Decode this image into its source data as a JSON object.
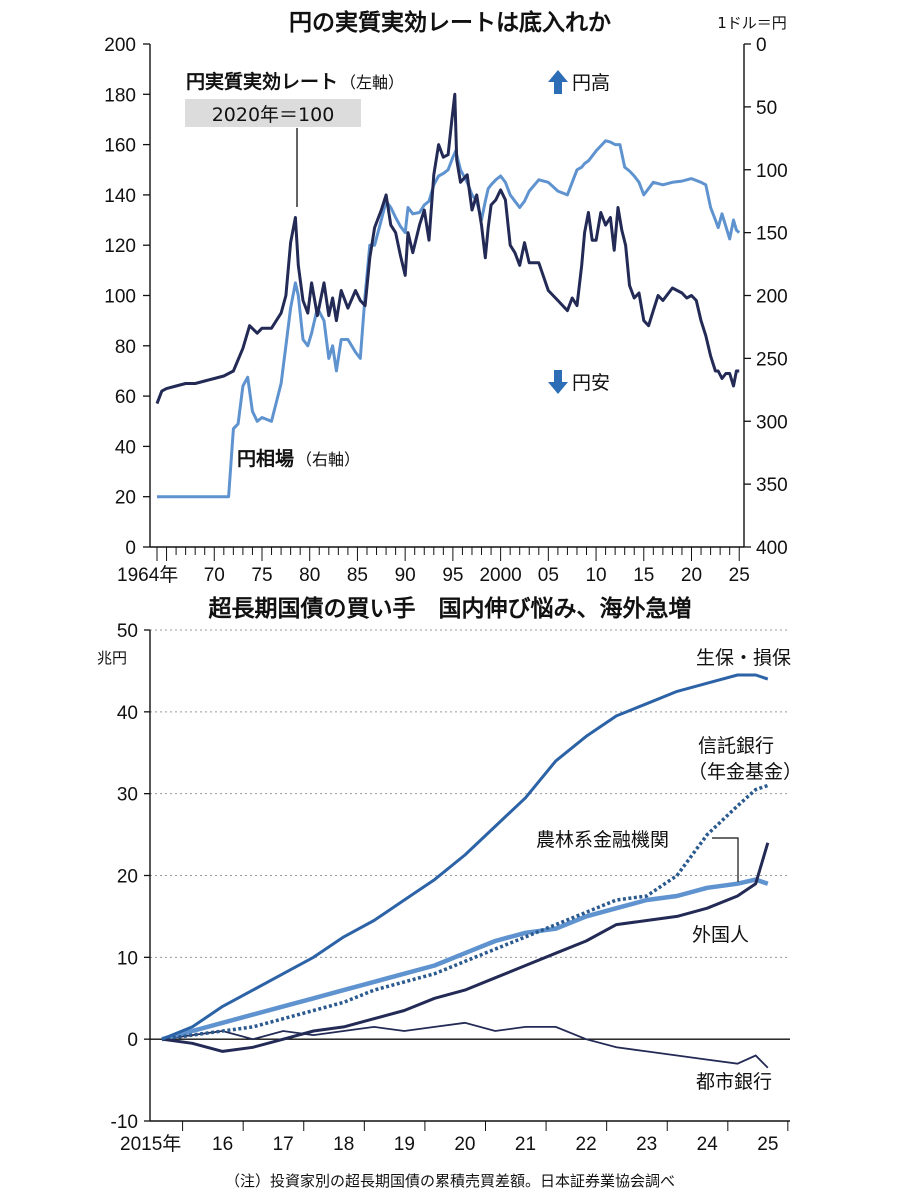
{
  "colors": {
    "dark_navy": "#222a55",
    "light_blue": "#5f93cf",
    "mid_blue": "#2c62a6",
    "grid": "#999999",
    "arrow_blue": "#2d6db5"
  },
  "chart_data": [
    {
      "type": "line",
      "title": "円の実質実効レートは底入れか",
      "left_axis": {
        "ylim": [
          0,
          200
        ],
        "ticks": [
          "0",
          "20",
          "40",
          "60",
          "80",
          "100",
          "120",
          "140",
          "160",
          "180",
          "200"
        ]
      },
      "right_axis": {
        "unit": "1ドル＝円",
        "ylim": [
          400,
          0
        ],
        "inverted": true,
        "ticks": [
          "400",
          "350",
          "300",
          "250",
          "200",
          "150",
          "100",
          "50",
          "0"
        ]
      },
      "x_range": [
        1964,
        2025.5
      ],
      "x_ticks": [
        {
          "x": 1964,
          "label": "1964年"
        },
        {
          "x": 1970,
          "label": "70"
        },
        {
          "x": 1975,
          "label": "75"
        },
        {
          "x": 1980,
          "label": "80"
        },
        {
          "x": 1985,
          "label": "85"
        },
        {
          "x": 1990,
          "label": "90"
        },
        {
          "x": 1995,
          "label": "95"
        },
        {
          "x": 2000,
          "label": "2000"
        },
        {
          "x": 2005,
          "label": "05"
        },
        {
          "x": 2010,
          "label": "10"
        },
        {
          "x": 2015,
          "label": "15"
        },
        {
          "x": 2020,
          "label": "20"
        },
        {
          "x": 2025,
          "label": "25"
        }
      ],
      "annotations": {
        "reer_label": "円実質実効レート",
        "reer_axis": "（左軸）",
        "base_year_box": "2020年＝100",
        "fx_label": "円相場",
        "fx_axis": "（右軸）",
        "yen_strong": "円高",
        "yen_weak": "円安"
      },
      "series": [
        {
          "name": "円実質実効レート",
          "axis": "left",
          "x": [
            1964,
            1964.5,
            1965,
            1966,
            1967,
            1968,
            1969,
            1970,
            1971,
            1972,
            1973,
            1973.7,
            1974.5,
            1975,
            1976,
            1977,
            1977.5,
            1978,
            1978.5,
            1978.8,
            1979.3,
            1979.8,
            1980.2,
            1980.8,
            1981.5,
            1982,
            1982.4,
            1982.8,
            1983.3,
            1984,
            1984.8,
            1985.3,
            1985.8,
            1986.3,
            1986.8,
            1987.5,
            1988,
            1988.5,
            1989,
            1989.5,
            1990,
            1990.3,
            1990.8,
            1991.5,
            1992,
            1992.5,
            1993,
            1993.5,
            1994,
            1994.5,
            1994.9,
            1995.2,
            1995.4,
            1995.8,
            1996.5,
            1997,
            1997.5,
            1998,
            1998.4,
            1998.7,
            1999,
            1999.5,
            2000,
            2000.5,
            2001,
            2001.5,
            2002,
            2002.5,
            2003,
            2004,
            2005,
            2006,
            2007,
            2007.5,
            2008,
            2008.5,
            2008.8,
            2009.2,
            2009.6,
            2010,
            2010.5,
            2011,
            2011.5,
            2011.9,
            2012.3,
            2012.7,
            2013.1,
            2013.5,
            2014,
            2014.5,
            2015,
            2015.5,
            2016,
            2016.5,
            2017,
            2018,
            2019,
            2019.5,
            2020,
            2020.5,
            2021,
            2021.5,
            2022,
            2022.5,
            2022.8,
            2023.2,
            2023.6,
            2024,
            2024.4,
            2024.7,
            2025
          ],
          "values": [
            57,
            62,
            63,
            64,
            65,
            65,
            66,
            67,
            68,
            70,
            79,
            88,
            85,
            87,
            87,
            93,
            100,
            121,
            131,
            112,
            98,
            93,
            105,
            92,
            105,
            92,
            99,
            90,
            102,
            95,
            102,
            98,
            96,
            115,
            127,
            134,
            140,
            128,
            125,
            116,
            108,
            125,
            117,
            128,
            134,
            122,
            148,
            160,
            155,
            156,
            170,
            180,
            154,
            145,
            148,
            134,
            140,
            128,
            115,
            127,
            136,
            138,
            142,
            138,
            120,
            117,
            112,
            121,
            113,
            113,
            102,
            98,
            94,
            99,
            96,
            112,
            125,
            133,
            122,
            122,
            133,
            128,
            131,
            118,
            135,
            126,
            120,
            104,
            99,
            101,
            90,
            88,
            94,
            100,
            98,
            103,
            101,
            99,
            100,
            98,
            90,
            84,
            76,
            70,
            70,
            67,
            69,
            69,
            64,
            70,
            70
          ],
          "color": "dark_navy"
        },
        {
          "name": "円相場",
          "axis": "right",
          "x": [
            1964,
            1971.5,
            1972,
            1972.5,
            1973,
            1973.5,
            1974,
            1974.5,
            1975,
            1976,
            1977,
            1977.5,
            1978,
            1978.5,
            1978.8,
            1979.3,
            1979.8,
            1980.2,
            1980.8,
            1981.5,
            1982,
            1982.4,
            1982.8,
            1983.3,
            1984,
            1984.8,
            1985.3,
            1985.8,
            1986.3,
            1986.8,
            1987.5,
            1988,
            1988.5,
            1989,
            1989.5,
            1990,
            1990.3,
            1990.8,
            1991.5,
            1992,
            1992.5,
            1993,
            1993.5,
            1994,
            1994.5,
            1995,
            1995.3,
            1995.8,
            1996.5,
            1997,
            1997.5,
            1998,
            1998.4,
            1998.7,
            1999,
            1999.5,
            2000,
            2000.5,
            2001,
            2001.5,
            2002,
            2002.5,
            2003,
            2004,
            2005,
            2006,
            2007,
            2007.5,
            2008,
            2008.5,
            2008.8,
            2009.2,
            2010,
            2011,
            2011.5,
            2012,
            2012.5,
            2013,
            2013.5,
            2014,
            2014.5,
            2015,
            2016,
            2017,
            2018,
            2019,
            2020,
            2021,
            2021.5,
            2022,
            2022.5,
            2022.8,
            2023.2,
            2024,
            2024.4,
            2024.7,
            2025
          ],
          "values": [
            360,
            360,
            306,
            302,
            272,
            265,
            292,
            300,
            297,
            300,
            270,
            240,
            210,
            190,
            200,
            235,
            240,
            230,
            210,
            220,
            250,
            240,
            260,
            235,
            235,
            245,
            250,
            200,
            160,
            160,
            140,
            125,
            130,
            138,
            145,
            150,
            130,
            135,
            134,
            128,
            125,
            112,
            105,
            103,
            100,
            90,
            85,
            100,
            110,
            120,
            125,
            140,
            125,
            115,
            112,
            108,
            105,
            110,
            120,
            125,
            130,
            125,
            117,
            108,
            110,
            117,
            120,
            110,
            100,
            98,
            95,
            93,
            85,
            77,
            78,
            80,
            80,
            98,
            101,
            105,
            110,
            120,
            110,
            112,
            110,
            109,
            107,
            110,
            112,
            130,
            140,
            146,
            135,
            155,
            140,
            148,
            150
          ]
        }
      ]
    },
    {
      "type": "line",
      "title": "超長期国債の買い手　国内伸び悩み、海外急増",
      "ylabel": "兆円",
      "ylim": [
        -10,
        50
      ],
      "y_ticks": [
        "-10",
        "0",
        "10",
        "20",
        "30",
        "40",
        "50"
      ],
      "x_range": [
        2015,
        2025.3
      ],
      "x_ticks": [
        {
          "x": 2015,
          "label": "2015年"
        },
        {
          "x": 2016,
          "label": "16"
        },
        {
          "x": 2017,
          "label": "17"
        },
        {
          "x": 2018,
          "label": "18"
        },
        {
          "x": 2019,
          "label": "19"
        },
        {
          "x": 2020,
          "label": "20"
        },
        {
          "x": 2021,
          "label": "21"
        },
        {
          "x": 2022,
          "label": "22"
        },
        {
          "x": 2023,
          "label": "23"
        },
        {
          "x": 2024,
          "label": "24"
        },
        {
          "x": 2025,
          "label": "25"
        }
      ],
      "note": "（注）投資家別の超長期国債の累積売買差額。日本証券業協会調べ",
      "series": [
        {
          "name": "生保・損保",
          "x": [
            2015,
            2015.5,
            2016,
            2016.5,
            2017,
            2017.5,
            2018,
            2018.5,
            2019,
            2019.5,
            2020,
            2020.5,
            2021,
            2021.5,
            2022,
            2022.5,
            2023,
            2023.5,
            2024,
            2024.5,
            2024.8,
            2025
          ],
          "values": [
            0,
            1.5,
            4,
            6,
            8,
            10,
            12.5,
            14.5,
            17,
            19.5,
            22.5,
            26,
            29.5,
            34,
            37,
            39.5,
            41,
            42.5,
            43.5,
            44.5,
            44.5,
            44
          ]
        },
        {
          "name": "信託銀行",
          "sub": "（年金基金）",
          "x": [
            2015,
            2015.5,
            2016,
            2016.5,
            2017,
            2017.5,
            2018,
            2018.5,
            2019,
            2019.5,
            2020,
            2020.5,
            2021,
            2021.5,
            2022,
            2022.5,
            2023,
            2023.5,
            2024,
            2024.5,
            2024.8,
            2025
          ],
          "values": [
            0,
            0.5,
            1,
            1.5,
            2.5,
            3.5,
            4.5,
            6,
            7,
            8,
            9.5,
            11,
            12.5,
            14,
            15.5,
            17,
            17.5,
            20,
            25,
            28.5,
            30.5,
            31
          ]
        },
        {
          "name": "農林系金融機関",
          "x": [
            2015,
            2015.5,
            2016,
            2016.5,
            2017,
            2017.5,
            2018,
            2018.5,
            2019,
            2019.5,
            2020,
            2020.5,
            2021,
            2021.5,
            2022,
            2022.5,
            2023,
            2023.5,
            2024,
            2024.5,
            2024.8,
            2025
          ],
          "values": [
            0,
            1,
            2,
            3,
            4,
            5,
            6,
            7,
            8,
            9,
            10.5,
            12,
            13,
            13.5,
            15,
            16,
            17,
            17.5,
            18.5,
            19,
            19.5,
            19
          ]
        },
        {
          "name": "外国人",
          "x": [
            2015,
            2015.5,
            2016,
            2016.5,
            2017,
            2017.5,
            2018,
            2018.5,
            2019,
            2019.5,
            2020,
            2020.5,
            2021,
            2021.5,
            2022,
            2022.5,
            2023,
            2023.5,
            2024,
            2024.5,
            2024.8,
            2025
          ],
          "values": [
            0,
            -0.5,
            -1.5,
            -1,
            0,
            1,
            1.5,
            2.5,
            3.5,
            5,
            6,
            7.5,
            9,
            10.5,
            12,
            14,
            14.5,
            15,
            16,
            17.5,
            19,
            24
          ]
        },
        {
          "name": "都市銀行",
          "x": [
            2015,
            2015.5,
            2016,
            2016.5,
            2017,
            2017.5,
            2018,
            2018.5,
            2019,
            2019.5,
            2020,
            2020.5,
            2021,
            2021.5,
            2022,
            2022.5,
            2023,
            2023.5,
            2024,
            2024.5,
            2024.8,
            2025
          ],
          "values": [
            0,
            0.5,
            1,
            0,
            1,
            0.5,
            1,
            1.5,
            1,
            1.5,
            2,
            1,
            1.5,
            1.5,
            0,
            -1,
            -1.5,
            -2,
            -2.5,
            -3,
            -2,
            -3.5
          ]
        }
      ]
    }
  ]
}
